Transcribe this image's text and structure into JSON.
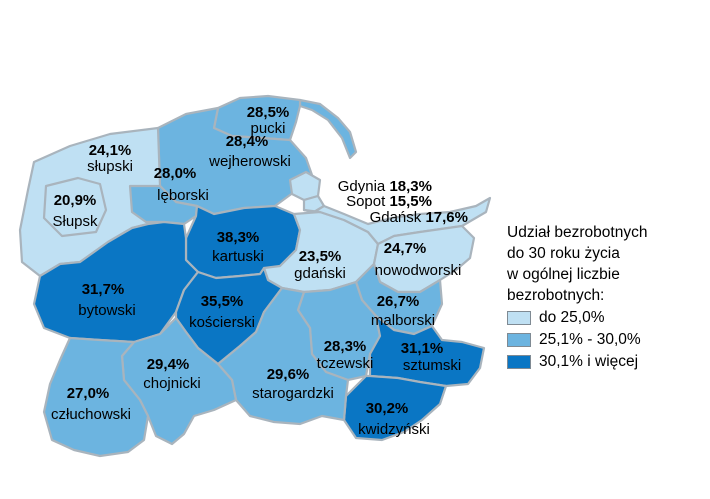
{
  "colors": {
    "light": "#bfe0f3",
    "medium": "#6cb4e0",
    "dark": "#0a76c4",
    "border": "#a9b4bd"
  },
  "legend": {
    "title_lines": [
      "Udział bezrobotnych",
      "do 30 roku życia",
      "w ogólnej liczbie",
      "bezrobotnych:"
    ],
    "items": [
      {
        "label": "do 25,0%",
        "class": "light"
      },
      {
        "label": "25,1% - 30,0%",
        "class": "medium"
      },
      {
        "label": "30,1% i więcej",
        "class": "dark"
      }
    ]
  },
  "regions": [
    {
      "id": "pucki",
      "name": "pucki",
      "value": "28,5%",
      "class": "medium"
    },
    {
      "id": "wejherowski",
      "name": "wejherowski",
      "value": "28,4%",
      "class": "medium"
    },
    {
      "id": "slupski",
      "name": "słupski",
      "value": "24,1%",
      "class": "light"
    },
    {
      "id": "leborski",
      "name": "lęborski",
      "value": "28,0%",
      "class": "medium"
    },
    {
      "id": "slupsk",
      "name": "Słupsk",
      "value": "20,9%",
      "class": "light"
    },
    {
      "id": "kartuski",
      "name": "kartuski",
      "value": "38,3%",
      "class": "dark"
    },
    {
      "id": "gdanski",
      "name": "gdański",
      "value": "23,5%",
      "class": "light"
    },
    {
      "id": "nowodworski",
      "name": "nowodworski",
      "value": "24,7%",
      "class": "light"
    },
    {
      "id": "bytowski",
      "name": "bytowski",
      "value": "31,7%",
      "class": "dark"
    },
    {
      "id": "koscierski",
      "name": "kościerski",
      "value": "35,5%",
      "class": "dark"
    },
    {
      "id": "malborski",
      "name": "malborski",
      "value": "26,7%",
      "class": "medium"
    },
    {
      "id": "tczewski",
      "name": "tczewski",
      "value": "28,3%",
      "class": "medium"
    },
    {
      "id": "sztumski",
      "name": "sztumski",
      "value": "31,1%",
      "class": "dark"
    },
    {
      "id": "chojnicki",
      "name": "chojnicki",
      "value": "29,4%",
      "class": "medium"
    },
    {
      "id": "starogardzki",
      "name": "starogardzki",
      "value": "29,6%",
      "class": "medium"
    },
    {
      "id": "czluchowski",
      "name": "człuchowski",
      "value": "27,0%",
      "class": "medium"
    },
    {
      "id": "kwidzynski",
      "name": "kwidzyński",
      "value": "30,2%",
      "class": "dark"
    }
  ],
  "cities": [
    {
      "id": "gdynia",
      "name": "Gdynia",
      "value": "18,3%",
      "class": "light"
    },
    {
      "id": "sopot",
      "name": "Sopot",
      "value": "15,5%",
      "class": "light"
    },
    {
      "id": "gdansk",
      "name": "Gdańsk",
      "value": "17,6%",
      "class": "light"
    }
  ]
}
